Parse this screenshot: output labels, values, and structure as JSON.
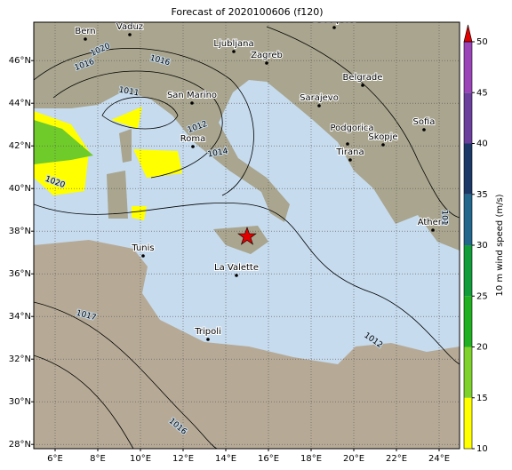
{
  "title": "Forecast of 2020100606 (f120)",
  "map": {
    "lon_ticks": [
      {
        "value": 6,
        "label": "6°E"
      },
      {
        "value": 8,
        "label": "8°E"
      },
      {
        "value": 10,
        "label": "10°E"
      },
      {
        "value": 12,
        "label": "12°E"
      },
      {
        "value": 14,
        "label": "14°E"
      },
      {
        "value": 16,
        "label": "16°E"
      },
      {
        "value": 18,
        "label": "18°E"
      },
      {
        "value": 20,
        "label": "20°E"
      },
      {
        "value": 22,
        "label": "22°E"
      },
      {
        "value": 24,
        "label": "24°E"
      }
    ],
    "lat_ticks": [
      {
        "value": 28,
        "label": "28°N"
      },
      {
        "value": 30,
        "label": "30°N"
      },
      {
        "value": 32,
        "label": "32°N"
      },
      {
        "value": 34,
        "label": "34°N"
      },
      {
        "value": 36,
        "label": "36°N"
      },
      {
        "value": 38,
        "label": "38°N"
      },
      {
        "value": 40,
        "label": "40°N"
      },
      {
        "value": 42,
        "label": "42°N"
      },
      {
        "value": 44,
        "label": "44°N"
      },
      {
        "value": 46,
        "label": "46°N"
      }
    ],
    "cities": [
      "Bern",
      "Vaduz",
      "Budapest",
      "Ljubljana",
      "Zagreb",
      "San Marino",
      "Belgrade",
      "Sarajevo",
      "Sofia",
      "Podgorica",
      "Skopje",
      "Roma",
      "Tirana",
      "Athens",
      "Tunis",
      "La Valette",
      "Tripoli"
    ],
    "isobar_labels": [
      1020,
      1016,
      1016,
      1011,
      1012,
      1014,
      1020,
      1017,
      1012,
      1016,
      101
    ]
  },
  "colorbar": {
    "label": "10 m wind speed (m/s)",
    "lim": [
      10,
      50
    ],
    "ticks": [
      10,
      15,
      20,
      25,
      30,
      35,
      40,
      45,
      50
    ],
    "colors": [
      "#ffff00",
      "#7fd12c",
      "#21b021",
      "#129c3a",
      "#23688c",
      "#1c3867",
      "#6b3f9c",
      "#9b44b8"
    ],
    "extend_color": "#e00000"
  }
}
